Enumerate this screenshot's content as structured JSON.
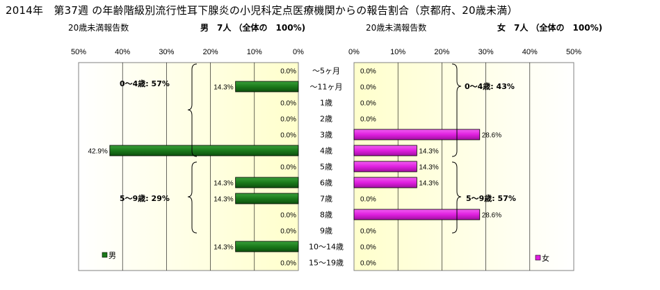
{
  "title": "2014年　第37週 の年齢階級別流行性耳下腺炎の小児科定点医療機関からの報告割合（京都府、20歳未満）",
  "left_panel": {
    "subtitle_left": "20歳未満報告数",
    "subtitle_right": "男　7人 （全体の　100%)",
    "legend": "男",
    "group_labels": [
      "0～4歳: 57%",
      "5～9歳: 29%"
    ]
  },
  "right_panel": {
    "subtitle_left": "20歳未満報告数",
    "subtitle_right": "女　7人 （全体の　100%)",
    "legend": "女",
    "group_labels": [
      "0～4歳: 43%",
      "5～9歳: 57%"
    ]
  },
  "colors": {
    "male": "#1b7a1b",
    "female": "#e020e0",
    "background_center": "#ffffcc"
  },
  "chart_data": [
    {
      "type": "bar",
      "orientation": "horizontal",
      "direction": "right-to-left",
      "series": [
        {
          "name": "男",
          "values": [
            0.0,
            14.3,
            0.0,
            0.0,
            0.0,
            42.9,
            0.0,
            14.3,
            14.3,
            0.0,
            0.0,
            14.3,
            0.0
          ]
        }
      ],
      "categories": [
        "～5ヶ月",
        "～11ヶ月",
        "1歳",
        "2歳",
        "3歳",
        "4歳",
        "5歳",
        "6歳",
        "7歳",
        "8歳",
        "9歳",
        "10～14歳",
        "15～19歳"
      ],
      "labels": [
        "0.0%",
        "14.3%",
        "0.0%",
        "0.0%",
        "0.0%",
        "42.9%",
        "0.0%",
        "14.3%",
        "14.3%",
        "0.0%",
        "0.0%",
        "14.3%",
        "0.0%"
      ],
      "xticks": [
        "50%",
        "40%",
        "30%",
        "20%",
        "10%",
        "0%"
      ],
      "xlim": [
        0,
        50
      ],
      "legend_position": "bottom-left"
    },
    {
      "type": "bar",
      "orientation": "horizontal",
      "direction": "left-to-right",
      "series": [
        {
          "name": "女",
          "values": [
            0.0,
            0.0,
            0.0,
            0.0,
            28.6,
            14.3,
            14.3,
            14.3,
            0.0,
            28.6,
            0.0,
            0.0,
            0.0
          ]
        }
      ],
      "categories": [
        "～5ヶ月",
        "～11ヶ月",
        "1歳",
        "2歳",
        "3歳",
        "4歳",
        "5歳",
        "6歳",
        "7歳",
        "8歳",
        "9歳",
        "10～14歳",
        "15～19歳"
      ],
      "labels": [
        "0.0%",
        "0.0%",
        "0.0%",
        "0.0%",
        "28.6%",
        "14.3%",
        "14.3%",
        "14.3%",
        "0.0%",
        "28.6%",
        "0.0%",
        "0.0%",
        "0.0%"
      ],
      "xticks": [
        "0%",
        "10%",
        "20%",
        "30%",
        "40%",
        "50%"
      ],
      "xlim": [
        0,
        50
      ],
      "legend_position": "bottom-right"
    }
  ]
}
